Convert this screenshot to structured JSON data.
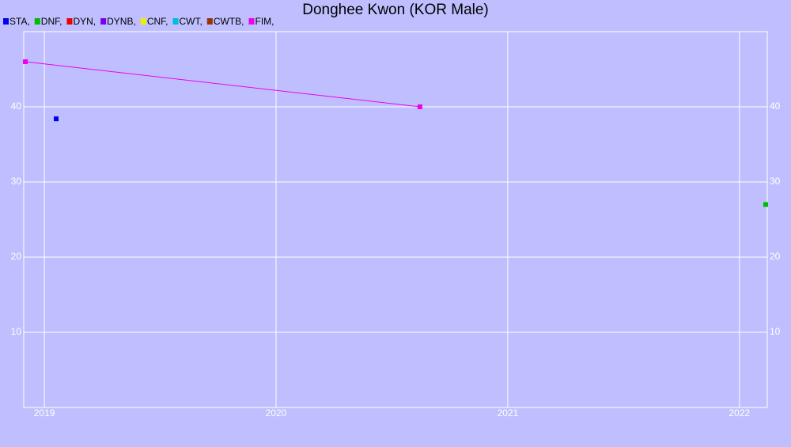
{
  "chart_data": {
    "type": "line",
    "title": "Donghee Kwon (KOR Male)",
    "xlim": [
      2018.911,
      2022.12
    ],
    "xticks": [
      2019,
      2020,
      2021,
      2022
    ],
    "ylim": [
      0,
      50
    ],
    "yticks": [
      10,
      20,
      30,
      40
    ],
    "grid": true,
    "series": [
      {
        "name": "STA,",
        "color": "#0000ee",
        "x": [
          2019.051
        ],
        "values": [
          38.4
        ]
      },
      {
        "name": "DNF,",
        "color": "#00bb00",
        "x": [
          2022.113
        ],
        "values": [
          27
        ]
      },
      {
        "name": "DYN,",
        "color": "#ee0000",
        "x": [],
        "values": []
      },
      {
        "name": "DYNB,",
        "color": "#7700ee",
        "x": [],
        "values": []
      },
      {
        "name": "CNF,",
        "color": "#eeee00",
        "x": [],
        "values": []
      },
      {
        "name": "CWT,",
        "color": "#00bbdd",
        "x": [],
        "values": []
      },
      {
        "name": "CWTB,",
        "color": "#993300",
        "x": [],
        "values": []
      },
      {
        "name": "FIM,",
        "color": "#ee00ee",
        "x": [
          2018.918,
          2020.621
        ],
        "values": [
          46,
          40
        ]
      }
    ]
  }
}
